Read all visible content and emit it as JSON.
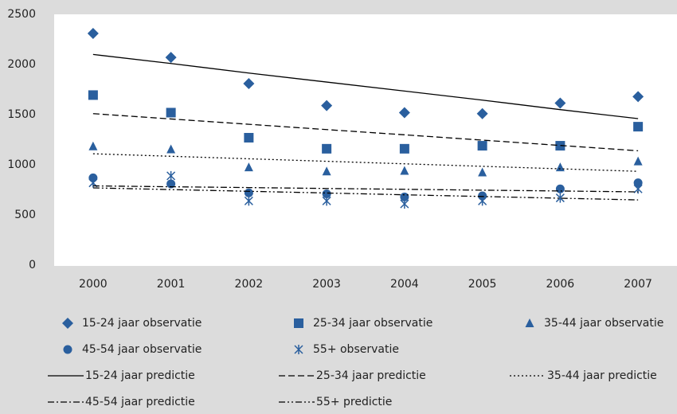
{
  "chart_data": {
    "type": "line",
    "categories": [
      "2000",
      "2001",
      "2002",
      "2003",
      "2004",
      "2005",
      "2006",
      "2007"
    ],
    "ylim": [
      0,
      2500
    ],
    "yticks": [
      0,
      500,
      1000,
      1500,
      2000,
      2500
    ],
    "grid": false,
    "legend": "bottom",
    "series": [
      {
        "name": "15-24 jaar observatie",
        "color": "#2a5f9e",
        "marker": "diamond",
        "values": [
          2310,
          2070,
          1810,
          1590,
          1520,
          1510,
          1615,
          1680
        ]
      },
      {
        "name": "25-34 jaar observatie",
        "color": "#2a5f9e",
        "marker": "square",
        "values": [
          1695,
          1520,
          1270,
          1160,
          1160,
          1190,
          1190,
          1380
        ]
      },
      {
        "name": "35-44 jaar observatie",
        "color": "#2a5f9e",
        "marker": "triangle",
        "values": [
          1185,
          1155,
          975,
          935,
          940,
          925,
          975,
          1035
        ]
      },
      {
        "name": "45-54 jaar observatie",
        "color": "#2a5f9e",
        "marker": "circle",
        "values": [
          870,
          810,
          720,
          710,
          680,
          690,
          760,
          820
        ]
      },
      {
        "name": "55+ observatie",
        "color": "#2a5f9e",
        "marker": "asterisk",
        "values": [
          820,
          890,
          640,
          640,
          610,
          640,
          670,
          760
        ]
      },
      {
        "name": "15-24 jaar predictie",
        "color": "#000000",
        "dash": "solid",
        "values": [
          2100,
          2010,
          1915,
          1825,
          1735,
          1645,
          1550,
          1460
        ]
      },
      {
        "name": "25-34 jaar predictie",
        "color": "#000000",
        "dash": "8,4",
        "values": [
          1510,
          1457,
          1404,
          1351,
          1299,
          1246,
          1193,
          1140
        ]
      },
      {
        "name": "35-44 jaar predictie",
        "color": "#000000",
        "dash": "2,3",
        "values": [
          1110,
          1085,
          1060,
          1035,
          1010,
          985,
          960,
          935
        ]
      },
      {
        "name": "45-54 jaar predictie",
        "color": "#000000",
        "dash": "8,3,2,3",
        "values": [
          790,
          781,
          773,
          764,
          756,
          747,
          739,
          730
        ]
      },
      {
        "name": "55+ predictie",
        "color": "#000000",
        "dash": "8,3,2,3,2,3",
        "values": [
          770,
          753,
          736,
          719,
          701,
          684,
          667,
          650
        ]
      }
    ]
  }
}
